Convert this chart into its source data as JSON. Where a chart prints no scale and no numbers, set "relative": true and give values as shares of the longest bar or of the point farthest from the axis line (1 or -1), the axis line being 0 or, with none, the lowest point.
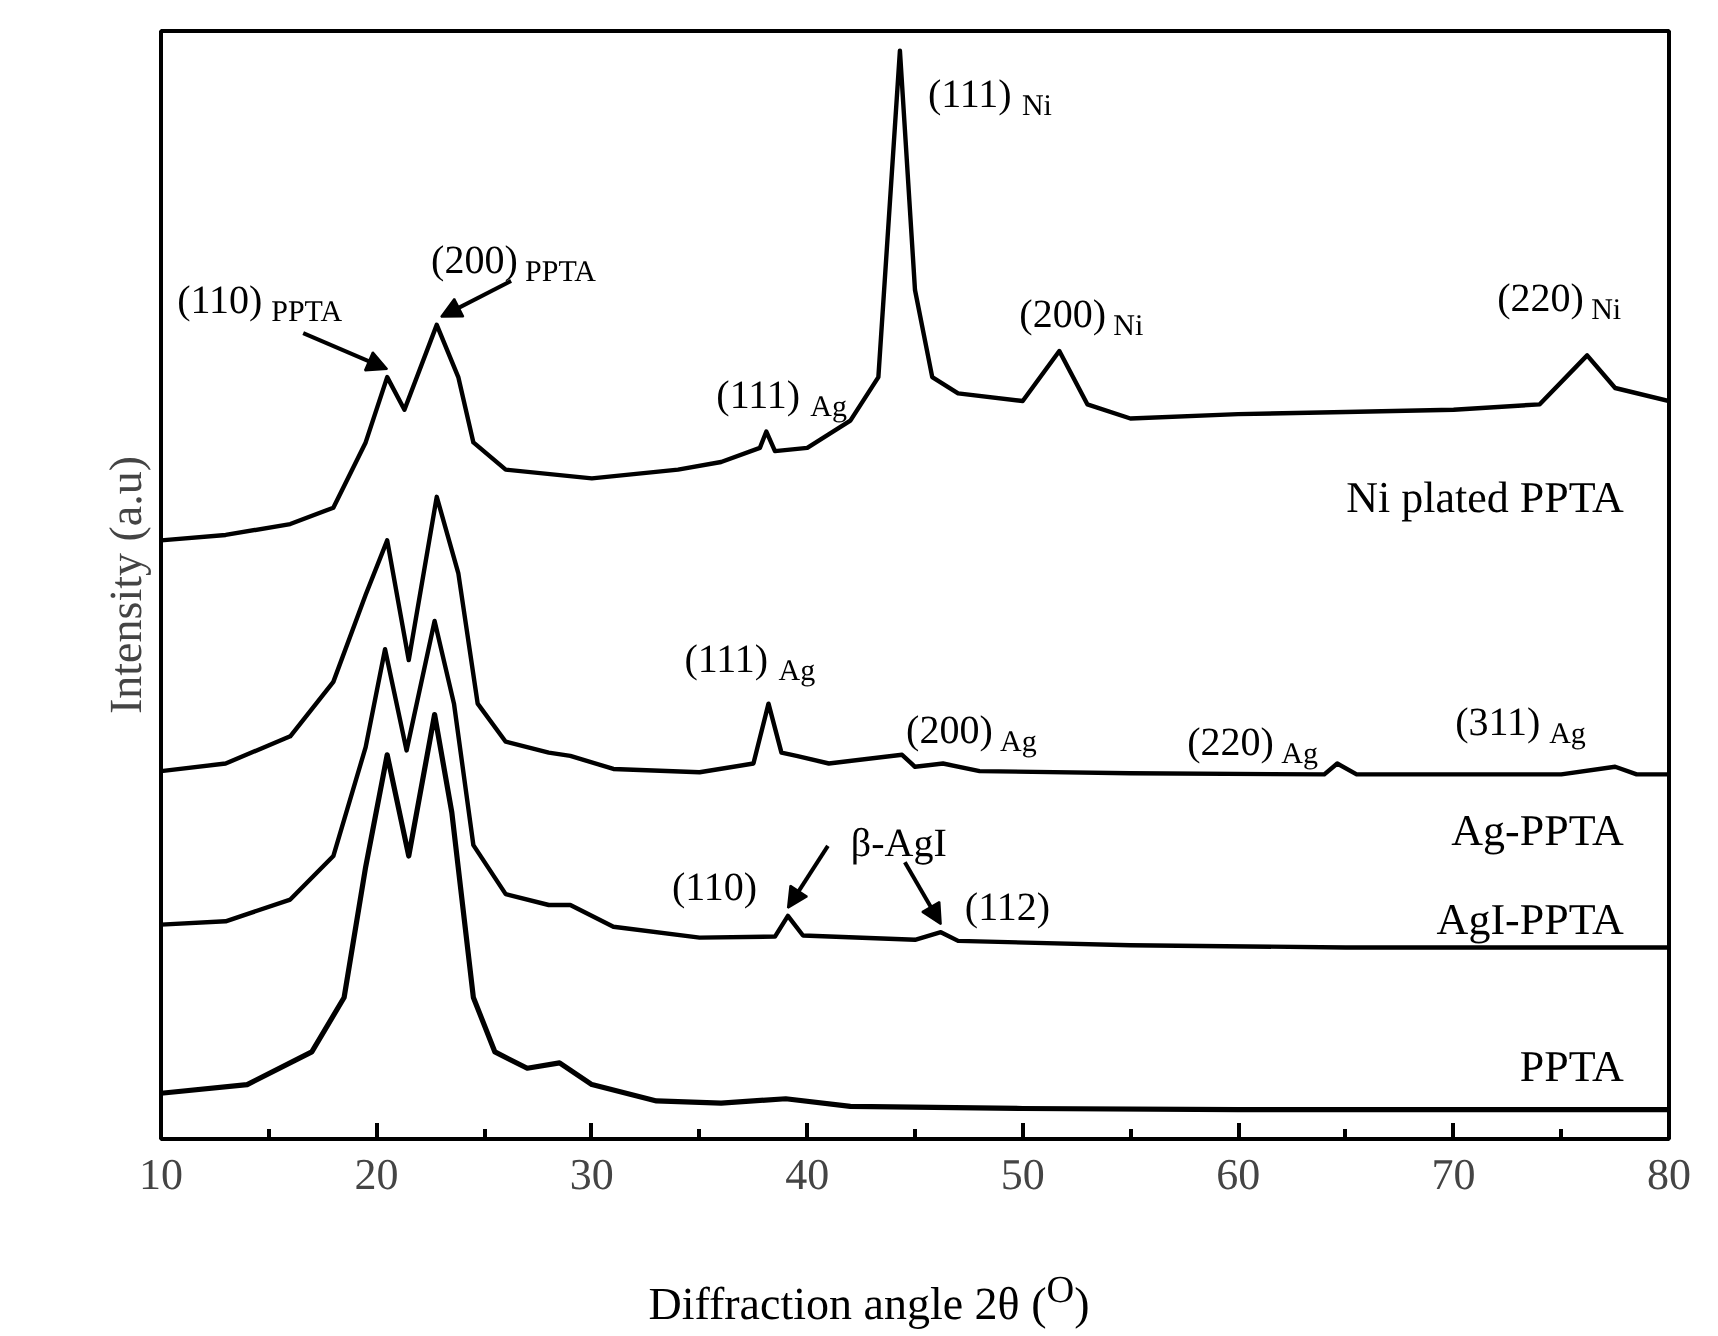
{
  "chart_data": {
    "type": "line",
    "relative": true,
    "xlabel": "Diffraction angle 2θ ($^{O}$)",
    "ylabel": "Intensity (a.u)",
    "xlim": [
      10,
      80
    ],
    "xticks": [
      10,
      20,
      30,
      40,
      50,
      60,
      70,
      80
    ],
    "grid": false,
    "marker": "none",
    "line_style": "solid",
    "series": [
      {
        "name": "Ni plated PPTA",
        "color": "#000000",
        "x": [
          10,
          13,
          16,
          18,
          19.5,
          20.5,
          21.3,
          22.8,
          23.8,
          24.5,
          26,
          30,
          34,
          36,
          37.8,
          38.1,
          38.5,
          40,
          42,
          43.3,
          44.3,
          45.0,
          45.8,
          47,
          50,
          51.7,
          53,
          55,
          60,
          65,
          70,
          74,
          76.2,
          77.5,
          80
        ],
        "values": [
          0.55,
          0.555,
          0.565,
          0.58,
          0.64,
          0.7,
          0.67,
          0.748,
          0.7,
          0.64,
          0.615,
          0.607,
          0.615,
          0.622,
          0.635,
          0.65,
          0.632,
          0.635,
          0.66,
          0.7,
          1.0,
          0.78,
          0.7,
          0.685,
          0.678,
          0.724,
          0.675,
          0.662,
          0.666,
          0.668,
          0.67,
          0.675,
          0.72,
          0.69,
          0.678
        ]
      },
      {
        "name": "Ag-PPTA",
        "color": "#000000",
        "x": [
          10,
          13,
          16,
          18,
          19.5,
          20.5,
          21.5,
          22.8,
          23.8,
          24.7,
          26,
          28,
          29,
          31,
          35,
          37.5,
          38.2,
          38.8,
          39.5,
          41,
          44.4,
          45,
          46.3,
          48,
          55,
          64,
          64.6,
          65.5,
          75,
          77.5,
          78.5,
          80
        ],
        "values": [
          0.338,
          0.345,
          0.37,
          0.42,
          0.5,
          0.55,
          0.44,
          0.59,
          0.52,
          0.4,
          0.365,
          0.355,
          0.352,
          0.34,
          0.337,
          0.345,
          0.4,
          0.355,
          0.352,
          0.345,
          0.353,
          0.342,
          0.345,
          0.338,
          0.336,
          0.335,
          0.345,
          0.335,
          0.335,
          0.342,
          0.335,
          0.335
        ]
      },
      {
        "name": "AgI-PPTA",
        "color": "#000000",
        "x": [
          10,
          13,
          16,
          18,
          19.5,
          20.4,
          21.4,
          22.7,
          23.6,
          24.5,
          26,
          28,
          29,
          31,
          35,
          38.5,
          39.1,
          39.8,
          45,
          46.2,
          47,
          55,
          65,
          80
        ],
        "values": [
          0.197,
          0.2,
          0.22,
          0.26,
          0.36,
          0.45,
          0.357,
          0.476,
          0.4,
          0.27,
          0.225,
          0.215,
          0.215,
          0.195,
          0.185,
          0.186,
          0.205,
          0.187,
          0.183,
          0.19,
          0.182,
          0.178,
          0.176,
          0.176
        ]
      },
      {
        "name": "PPTA",
        "color": "#000000",
        "x": [
          10,
          14,
          17,
          18.5,
          19.5,
          20.5,
          21.5,
          22.7,
          23.5,
          24.5,
          25.5,
          27,
          28.5,
          30,
          33,
          36,
          39,
          42,
          50,
          60,
          70,
          80
        ],
        "values": [
          0.042,
          0.05,
          0.08,
          0.13,
          0.25,
          0.353,
          0.26,
          0.39,
          0.3,
          0.13,
          0.08,
          0.065,
          0.07,
          0.05,
          0.035,
          0.033,
          0.037,
          0.03,
          0.028,
          0.027,
          0.027,
          0.027
        ]
      }
    ],
    "annotations": [
      {
        "text": "(110)$_{PPTA}$",
        "x": 20.5,
        "y": 0.7
      },
      {
        "text": "(200)$_{PPTA}$",
        "x": 23,
        "y": 0.748
      },
      {
        "text": "(111)$_{Ag}$",
        "x": 38.1,
        "y": 0.65
      },
      {
        "text": "(111)$_{Ni}$",
        "x": 44.3,
        "y": 1.0
      },
      {
        "text": "(200)$_{Ni}$",
        "x": 51.7,
        "y": 0.724
      },
      {
        "text": "(220)$_{Ni}$",
        "x": 76.2,
        "y": 0.72
      },
      {
        "text": "(111)$_{Ag}$",
        "x": 38.2,
        "y": 0.4
      },
      {
        "text": "(200)$_{Ag}$",
        "x": 44.4,
        "y": 0.353
      },
      {
        "text": "(220)$_{Ag}$",
        "x": 64.6,
        "y": 0.345
      },
      {
        "text": "(311)$_{Ag}$",
        "x": 77.5,
        "y": 0.342
      },
      {
        "text": "(110)",
        "x": 39.1,
        "y": 0.205
      },
      {
        "text": "(112)",
        "x": 46.2,
        "y": 0.19
      },
      "β-AgI"
    ]
  }
}
